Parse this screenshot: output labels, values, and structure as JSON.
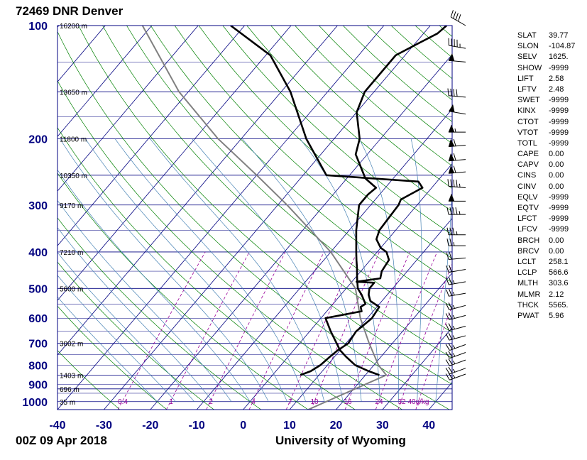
{
  "header": {
    "station_title": "72469 DNR Denver",
    "date": "00Z 09 Apr 2018",
    "source": "University of Wyoming"
  },
  "colors": {
    "isobar": "#000080",
    "isotherm": "#000080",
    "dry_adiabat": "#008000",
    "moist_adiabat": "#4682b4",
    "mixing_ratio": "#990099",
    "parcel": "#808080",
    "sounding": "#000000",
    "axis_label": "#000080"
  },
  "chart_data": {
    "type": "skew-t log-p",
    "xlim": [
      -40,
      45
    ],
    "ylim": [
      1050,
      100
    ],
    "x_ticks": [
      -40,
      -30,
      -20,
      -10,
      0,
      10,
      20,
      30,
      40
    ],
    "pressure_labels": [
      100,
      200,
      300,
      400,
      500,
      600,
      700,
      800,
      900,
      1000
    ],
    "height_labels": [
      {
        "p": 100,
        "label": "16200 m"
      },
      {
        "p": 150,
        "label": "13650 m"
      },
      {
        "p": 200,
        "label": "11800 m"
      },
      {
        "p": 250,
        "label": "10350 m"
      },
      {
        "p": 300,
        "label": "9170 m"
      },
      {
        "p": 400,
        "label": "7210 m"
      },
      {
        "p": 500,
        "label": "5600 m"
      },
      {
        "p": 700,
        "label": "3002 m"
      },
      {
        "p": 850,
        "label": "1403 m"
      },
      {
        "p": 925,
        "label": "696 m"
      },
      {
        "p": 1000,
        "label": "35 m"
      }
    ],
    "mixing_ratio_labels": [
      "0.4",
      "1",
      "2",
      "4",
      "7",
      "10",
      "16",
      "24",
      "32",
      "40g/kg"
    ],
    "mixing_ratio_values": [
      0.4,
      1,
      2,
      4,
      7,
      10,
      16,
      24,
      32,
      40
    ],
    "temperature": [
      [
        850,
        23.0
      ],
      [
        830,
        20.0
      ],
      [
        800,
        16.0
      ],
      [
        760,
        12.5
      ],
      [
        730,
        10.0
      ],
      [
        700,
        8.0
      ],
      [
        650,
        4.5
      ],
      [
        600,
        1.0
      ],
      [
        575,
        7.5
      ],
      [
        560,
        6.5
      ],
      [
        550,
        7.0
      ],
      [
        520,
        4.5
      ],
      [
        500,
        2.5
      ],
      [
        470,
        0.5
      ],
      [
        440,
        -1.5
      ],
      [
        420,
        -3.0
      ],
      [
        400,
        -4.5
      ],
      [
        350,
        -8.5
      ],
      [
        300,
        -12.5
      ],
      [
        281,
        -12.5
      ],
      [
        270,
        -12.0
      ],
      [
        255,
        -16.0
      ],
      [
        220,
        -22.5
      ],
      [
        200,
        -24.5
      ],
      [
        170,
        -30.0
      ],
      [
        150,
        -32.0
      ],
      [
        135,
        -32.0
      ],
      [
        120,
        -32.0
      ],
      [
        112,
        -29.5
      ],
      [
        105,
        -27.0
      ],
      [
        100,
        -26.5
      ]
    ],
    "dewpoint": [
      [
        850,
        6.0
      ],
      [
        830,
        7.5
      ],
      [
        800,
        8.5
      ],
      [
        760,
        9.0
      ],
      [
        730,
        9.5
      ],
      [
        700,
        10.5
      ],
      [
        650,
        10.0
      ],
      [
        600,
        11.0
      ],
      [
        560,
        10.5
      ],
      [
        540,
        7.5
      ],
      [
        520,
        6.0
      ],
      [
        500,
        5.0
      ],
      [
        483,
        5.0
      ],
      [
        480,
        1.0
      ],
      [
        470,
        5.5
      ],
      [
        450,
        4.5
      ],
      [
        420,
        4.0
      ],
      [
        400,
        2.0
      ],
      [
        390,
        0.0
      ],
      [
        370,
        -2.5
      ],
      [
        350,
        -3.5
      ],
      [
        300,
        -4.0
      ],
      [
        290,
        -4.5
      ],
      [
        270,
        -2.0
      ],
      [
        260,
        -4.0
      ],
      [
        250,
        -25.0
      ],
      [
        200,
        -36.0
      ],
      [
        150,
        -48.0
      ],
      [
        120,
        -59.0
      ],
      [
        100,
        -73.0
      ]
    ],
    "parcel": [
      [
        1050,
        14.0
      ],
      [
        850,
        24.5
      ],
      [
        800,
        21.0
      ],
      [
        700,
        15.0
      ],
      [
        600,
        8.5
      ],
      [
        500,
        2.0
      ],
      [
        400,
        -10.0
      ],
      [
        300,
        -28.0
      ],
      [
        250,
        -40.0
      ],
      [
        200,
        -55.0
      ],
      [
        150,
        -72.0
      ],
      [
        100,
        -92.0
      ]
    ],
    "wind_barbs": [
      {
        "p": 100,
        "dir": 300,
        "spd": 40
      },
      {
        "p": 115,
        "dir": 280,
        "spd": 45
      },
      {
        "p": 125,
        "dir": 275,
        "spd": 50
      },
      {
        "p": 155,
        "dir": 275,
        "spd": 40
      },
      {
        "p": 172,
        "dir": 280,
        "spd": 50
      },
      {
        "p": 192,
        "dir": 270,
        "spd": 55
      },
      {
        "p": 208,
        "dir": 265,
        "spd": 60
      },
      {
        "p": 227,
        "dir": 265,
        "spd": 60
      },
      {
        "p": 245,
        "dir": 265,
        "spd": 60
      },
      {
        "p": 270,
        "dir": 275,
        "spd": 45
      },
      {
        "p": 293,
        "dir": 270,
        "spd": 50
      },
      {
        "p": 318,
        "dir": 270,
        "spd": 45
      },
      {
        "p": 360,
        "dir": 270,
        "spd": 35
      },
      {
        "p": 385,
        "dir": 270,
        "spd": 25
      },
      {
        "p": 415,
        "dir": 265,
        "spd": 20
      },
      {
        "p": 445,
        "dir": 260,
        "spd": 20
      },
      {
        "p": 480,
        "dir": 260,
        "spd": 25
      },
      {
        "p": 515,
        "dir": 260,
        "spd": 25
      },
      {
        "p": 555,
        "dir": 255,
        "spd": 25
      },
      {
        "p": 590,
        "dir": 255,
        "spd": 25
      },
      {
        "p": 630,
        "dir": 255,
        "spd": 25
      },
      {
        "p": 668,
        "dir": 255,
        "spd": 25
      },
      {
        "p": 705,
        "dir": 250,
        "spd": 25
      },
      {
        "p": 740,
        "dir": 250,
        "spd": 25
      },
      {
        "p": 775,
        "dir": 250,
        "spd": 25
      },
      {
        "p": 815,
        "dir": 250,
        "spd": 25
      },
      {
        "p": 845,
        "dir": 250,
        "spd": 25
      }
    ]
  },
  "indices": [
    {
      "k": "SLAT",
      "v": "39.77"
    },
    {
      "k": "SLON",
      "v": "-104.87"
    },
    {
      "k": "SELV",
      "v": "1625."
    },
    {
      "k": "SHOW",
      "v": "-9999"
    },
    {
      "k": "LIFT",
      "v": "2.58"
    },
    {
      "k": "LFTV",
      "v": "2.48"
    },
    {
      "k": "SWET",
      "v": "-9999"
    },
    {
      "k": "KINX",
      "v": "-9999"
    },
    {
      "k": "CTOT",
      "v": "-9999"
    },
    {
      "k": "VTOT",
      "v": "-9999"
    },
    {
      "k": "TOTL",
      "v": "-9999"
    },
    {
      "k": "CAPE",
      "v": "0.00"
    },
    {
      "k": "CAPV",
      "v": "0.00"
    },
    {
      "k": "CINS",
      "v": "0.00"
    },
    {
      "k": "CINV",
      "v": "0.00"
    },
    {
      "k": "EQLV",
      "v": "-9999"
    },
    {
      "k": "EQTV",
      "v": "-9999"
    },
    {
      "k": "LFCT",
      "v": "-9999"
    },
    {
      "k": "LFCV",
      "v": "-9999"
    },
    {
      "k": "BRCH",
      "v": "0.00"
    },
    {
      "k": "BRCV",
      "v": "0.00"
    },
    {
      "k": "LCLT",
      "v": "258.1"
    },
    {
      "k": "LCLP",
      "v": "566.6"
    },
    {
      "k": "MLTH",
      "v": "303.6"
    },
    {
      "k": "MLMR",
      "v": "2.12"
    },
    {
      "k": "THCK",
      "v": "5565."
    },
    {
      "k": "PWAT",
      "v": "5.96"
    }
  ]
}
